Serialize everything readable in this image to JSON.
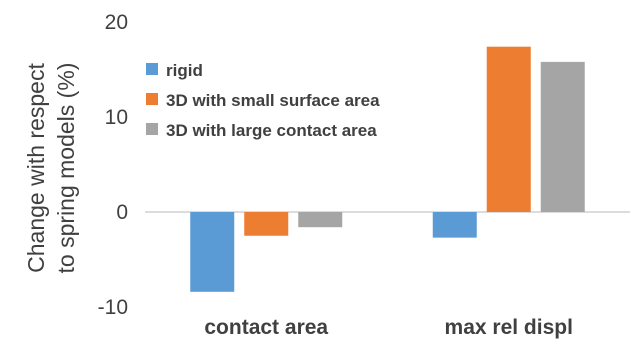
{
  "chart_data": {
    "type": "bar",
    "categories": [
      "contact area",
      "max rel displ"
    ],
    "series": [
      {
        "name": "rigid",
        "values": [
          -8.4,
          -2.7
        ],
        "color": "#5B9BD5"
      },
      {
        "name": "3D with small surface area",
        "values": [
          -2.5,
          17.4
        ],
        "color": "#ED7D31"
      },
      {
        "name": "3D with large contact area",
        "values": [
          -1.6,
          15.8
        ],
        "color": "#A5A5A5"
      }
    ],
    "ylabel": [
      "Change with respect",
      "to spring models (%)"
    ],
    "ylim": [
      -10,
      20
    ],
    "yticks": [
      -10,
      0,
      10,
      20
    ],
    "ytick_labels": [
      "-10",
      "0",
      "10",
      "20"
    ],
    "grid": false,
    "legend": "top-left"
  }
}
